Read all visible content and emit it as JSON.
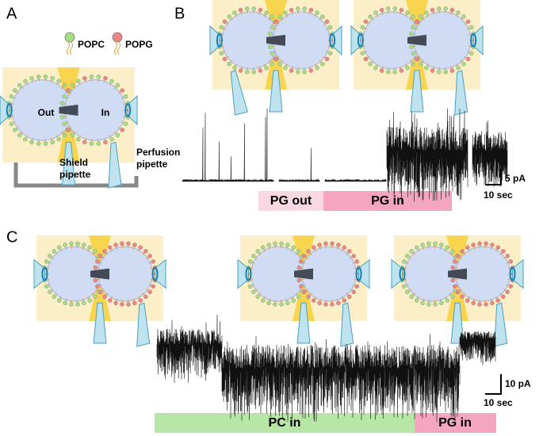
{
  "panel_a": {
    "label": "A",
    "legend": [
      {
        "name": "POPC",
        "color": "#a6dc86"
      },
      {
        "name": "POPG",
        "color": "#ee8585"
      }
    ],
    "vesicles": [
      "Out",
      "In"
    ],
    "shield": [
      "Shield",
      "pipette"
    ],
    "perfusion": [
      "Perfusion",
      "pipette"
    ]
  },
  "panel_b": {
    "label": "B",
    "scale": [
      "5 pA",
      "10 sec"
    ],
    "conditions": [
      "PG out",
      "PG in"
    ]
  },
  "panel_c": {
    "label": "C",
    "scale": [
      "10 pA",
      "10 sec"
    ],
    "conditions": [
      "PC in",
      "PG in"
    ]
  }
}
